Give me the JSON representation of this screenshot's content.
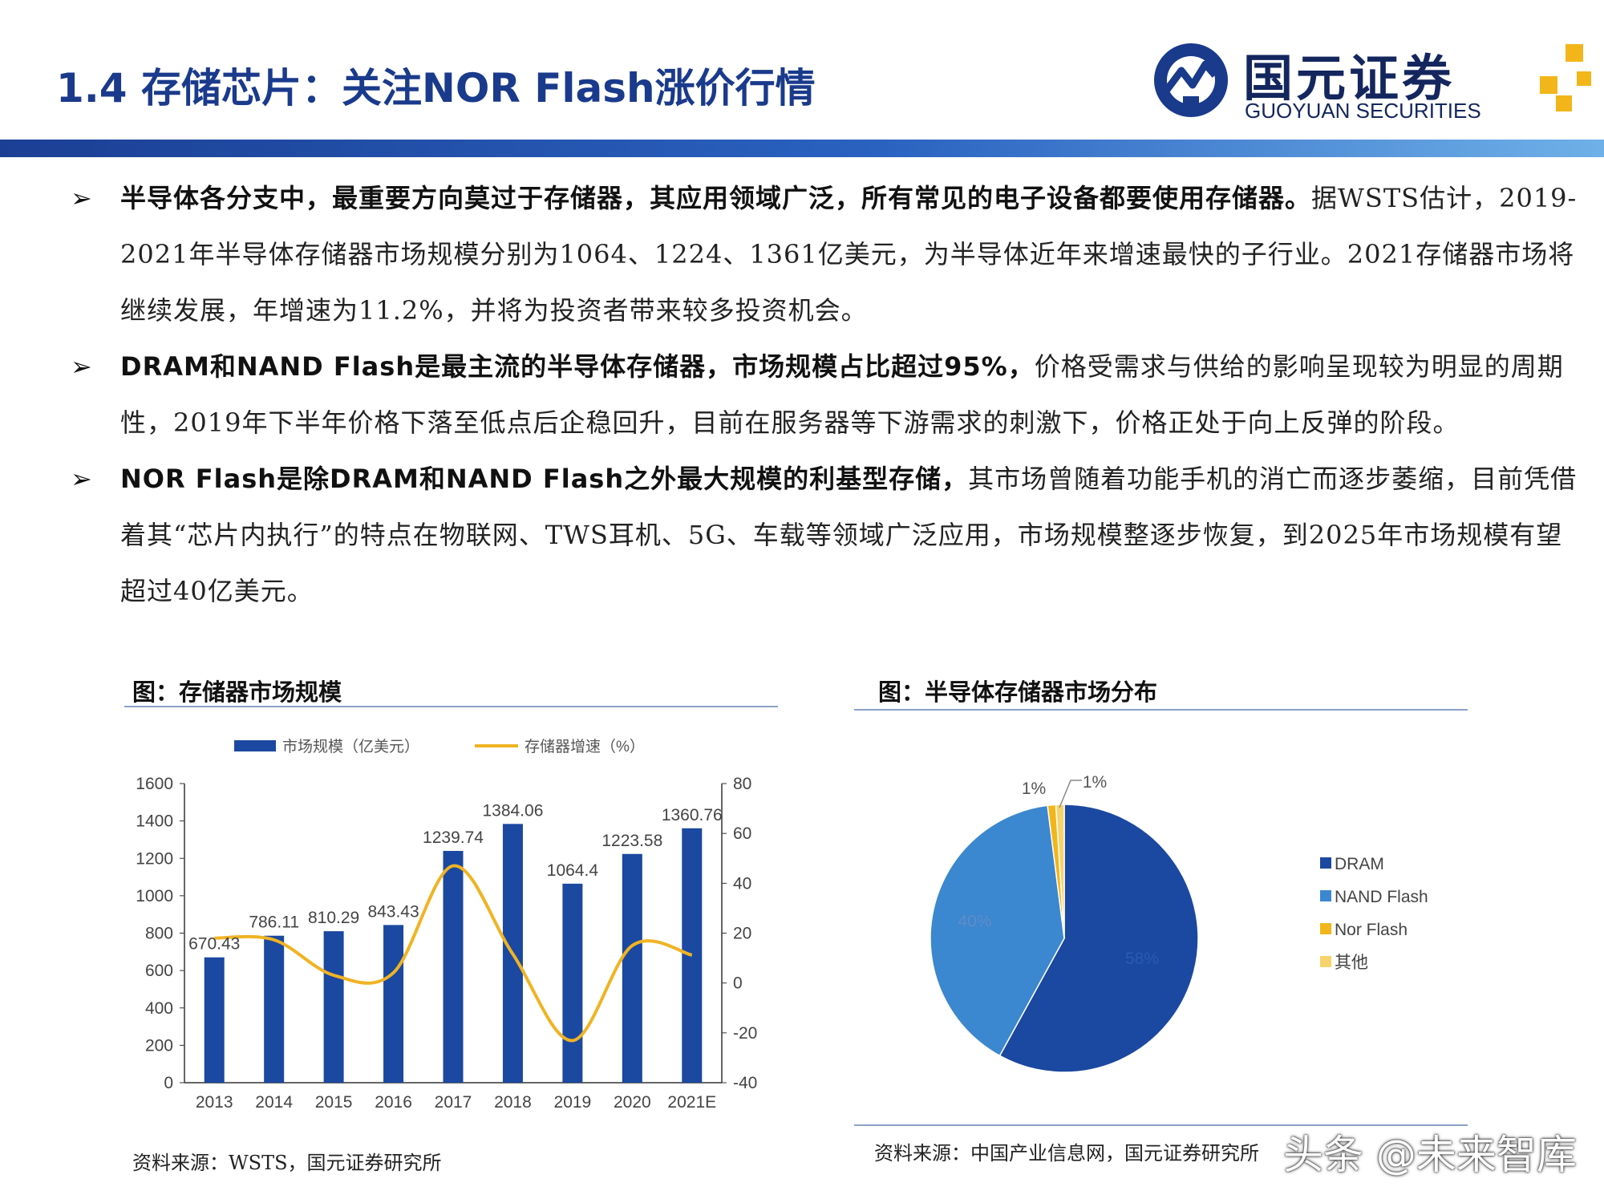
{
  "header": {
    "title": "1.4 存储芯片：关注NOR Flash涨价行情",
    "logo_name": "国元证券",
    "logo_en": "GUOYUAN SECURITIES"
  },
  "bullets": [
    {
      "mark": "➢",
      "bold": "半导体各分支中，最重要方向莫过于存储器，其应用领域广泛，所有常见的电子设备都要使用存储器。",
      "text": "据WSTS估计，2019-2021年半导体存储器市场规模分别为1064、1224、1361亿美元，为半导体近年来增速最快的子行业。2021存储器市场将继续发展，年增速为11.2%，并将为投资者带来较多投资机会。"
    },
    {
      "mark": "➢",
      "bold": "DRAM和NAND Flash是最主流的半导体存储器，市场规模占比超过95%，",
      "text": "价格受需求与供给的影响呈现较为明显的周期性，2019年下半年价格下落至低点后企稳回升，目前在服务器等下游需求的刺激下，价格正处于向上反弹的阶段。"
    },
    {
      "mark": "➢",
      "bold": "NOR Flash是除DRAM和NAND Flash之外最大规模的利基型存储，",
      "text": "其市场曾随着功能手机的消亡而逐步萎缩，目前凭借着其“芯片内执行”的特点在物联网、TWS耳机、5G、车载等领域广泛应用，市场规模整逐步恢复，到2025年市场规模有望超过40亿美元。"
    }
  ],
  "chart_left_title": "图：存储器市场规模",
  "chart_right_title": "图：半导体存储器市场分布",
  "source_left": "资料来源：WSTS，国元证券研究所",
  "source_right": "资料来源：中国产业信息网，国元证券研究所",
  "watermark": "头条 @未来智库",
  "chart_data": [
    {
      "type": "bar",
      "categories": [
        "2013",
        "2014",
        "2015",
        "2016",
        "2017",
        "2018",
        "2019",
        "2020",
        "2021E"
      ],
      "series": [
        {
          "name": "市场规模（亿美元）",
          "type": "bar",
          "axis": "left",
          "values": [
            670.43,
            786.11,
            810.29,
            843.43,
            1239.74,
            1384.06,
            1064.4,
            1223.58,
            1360.76
          ],
          "labels": [
            "670.43",
            "786.11",
            "810.29",
            "843.43",
            "1239.74",
            "1384.06",
            "1064.4",
            "1223.58",
            "1360.76"
          ]
        },
        {
          "name": "存储器增速（%）",
          "type": "line",
          "axis": "right",
          "values": [
            18,
            17.3,
            3.1,
            4.1,
            47,
            11.6,
            -23.1,
            15,
            11.2
          ]
        }
      ],
      "ylim": [
        0,
        1600
      ],
      "yticks": [
        0,
        200,
        400,
        600,
        800,
        1000,
        1200,
        1400,
        1600
      ],
      "y2lim": [
        -40,
        80
      ],
      "y2ticks": [
        -40,
        -20,
        0,
        20,
        40,
        60,
        80
      ],
      "legend": "top",
      "colors": {
        "bar": "#1b48a0",
        "line": "#f0b323"
      }
    },
    {
      "type": "pie",
      "categories": [
        "DRAM",
        "NAND Flash",
        "Nor Flash",
        "其他"
      ],
      "values": [
        58,
        40,
        1,
        1
      ],
      "labels": [
        "58%",
        "40%",
        "1%",
        "1%"
      ],
      "colors": [
        "#1b48a0",
        "#3b87d0",
        "#f2b61a",
        "#f6d36b"
      ],
      "legend": "right"
    }
  ]
}
